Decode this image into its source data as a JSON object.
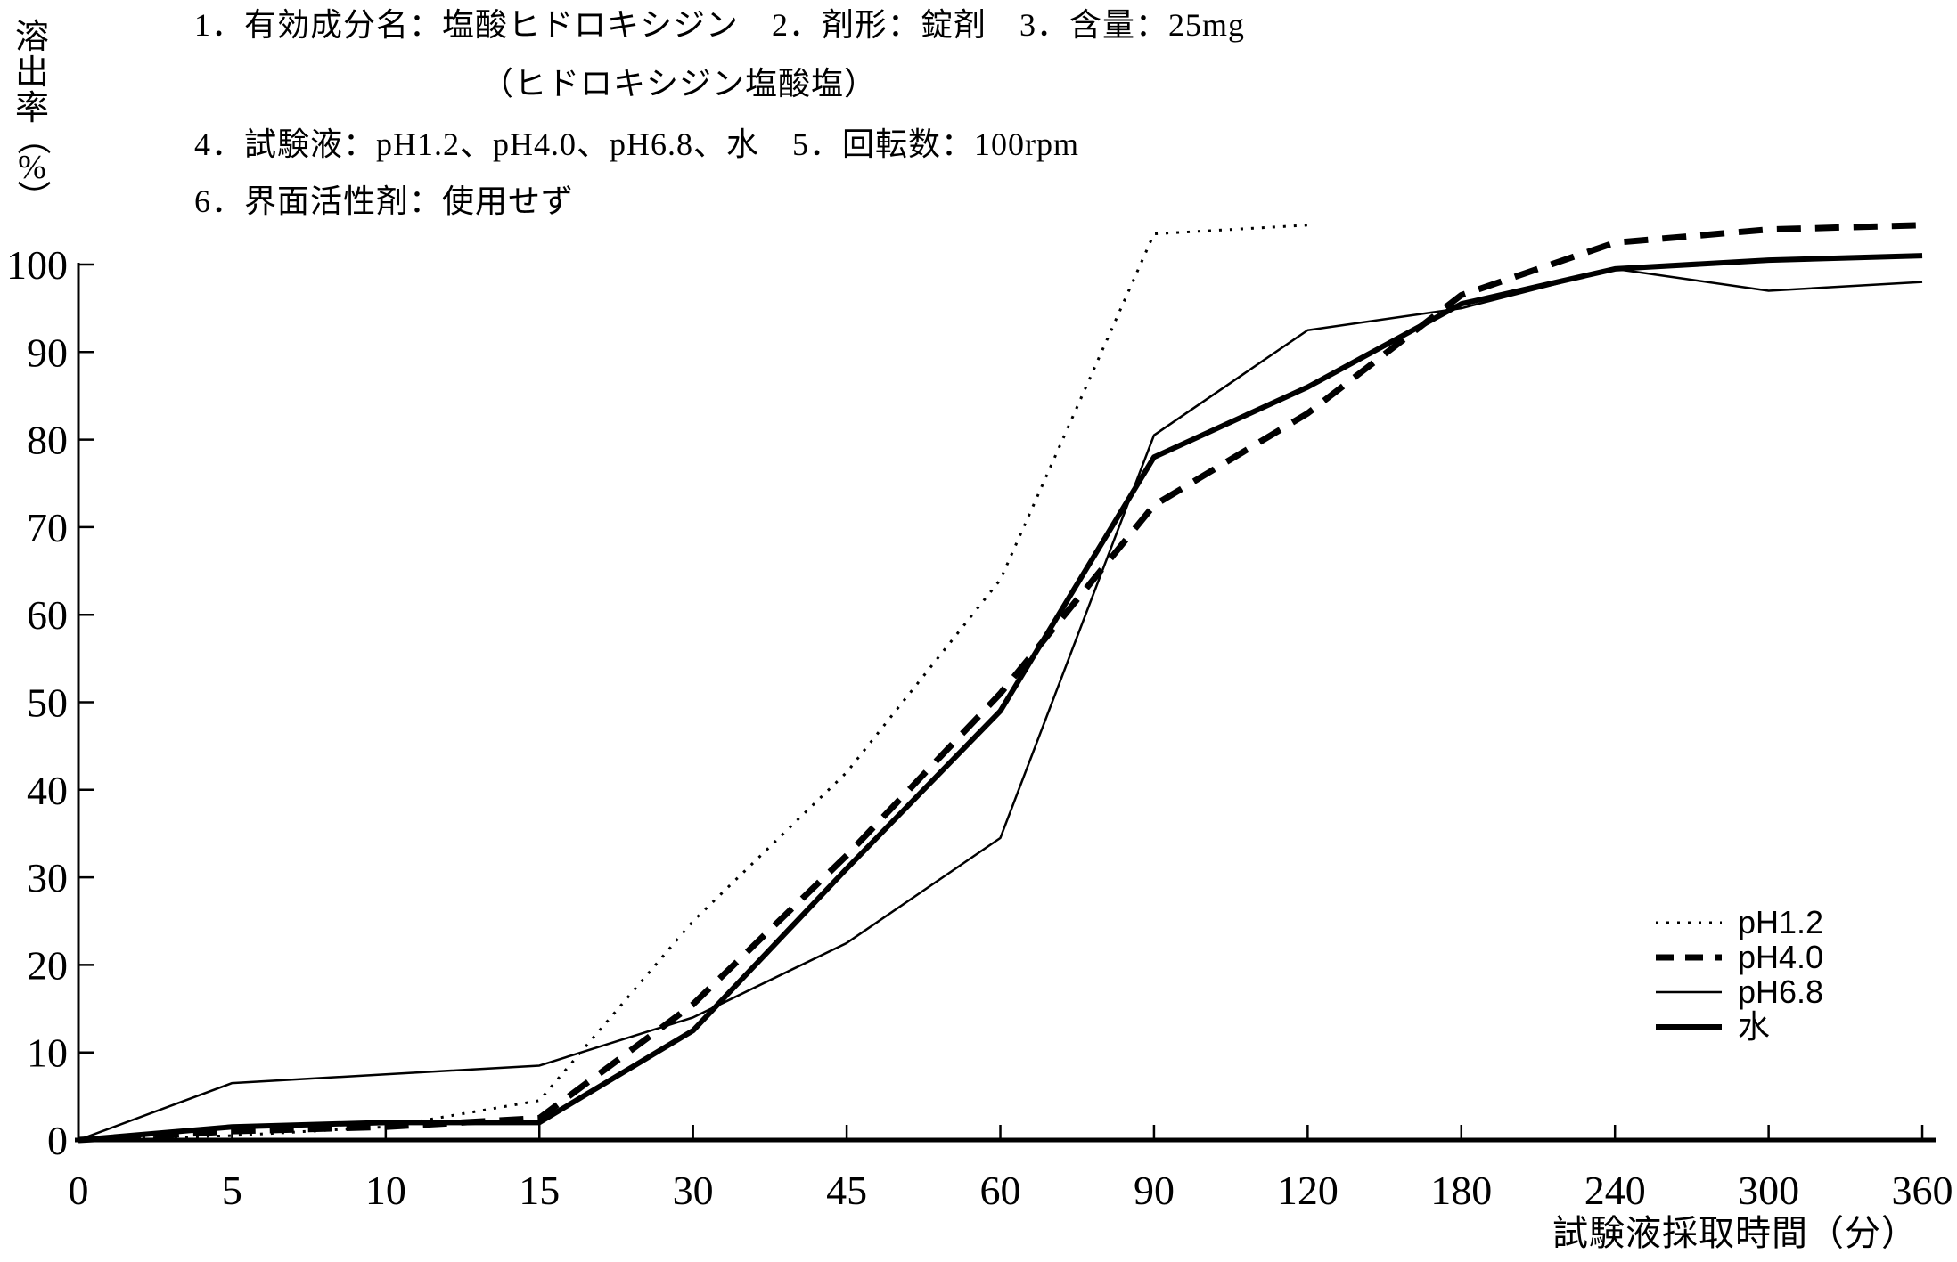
{
  "page": {
    "background": "#ffffff",
    "ink": "#000000"
  },
  "chart_data": {
    "type": "line",
    "header_lines": [
      "1．有効成分名：塩酸ヒドロキシジン　2．剤形：錠剤　3．含量：25mg",
      "（ヒドロキシジン塩酸塩）",
      "4．試験液：pH1.2、pH4.0、pH6.8、水　5．回転数：100rpm",
      "6．界面活性剤：使用せず"
    ],
    "ylabel": "溶出率（%）",
    "ylabel_chars": [
      "溶",
      "出",
      "率",
      "（",
      "%",
      "）"
    ],
    "xlabel": "試験液採取時間（分）",
    "x_scale": "categorical-equal-spacing",
    "x_categories": [
      0,
      5,
      10,
      15,
      30,
      45,
      60,
      90,
      120,
      180,
      240,
      300,
      360
    ],
    "y_ticks": [
      0,
      10,
      20,
      30,
      40,
      50,
      60,
      70,
      80,
      90,
      100
    ],
    "ylim": [
      0,
      100
    ],
    "grid": false,
    "line_color": "#000000",
    "legend_position": "inside-right-lower",
    "series": [
      {
        "name": "pH1.2",
        "line_style": "dotted-thin",
        "stroke_width": 3,
        "dash": "3 9",
        "values": [
          0,
          0.5,
          1.5,
          4.5,
          25,
          42,
          64,
          103.5,
          104.5
        ]
      },
      {
        "name": "pH4.0",
        "line_style": "dashed-thick",
        "stroke_width": 7,
        "dash": "27 16",
        "values": [
          0,
          1,
          1.5,
          2.5,
          15.5,
          32.5,
          51,
          72.5,
          83,
          96.5,
          102.5,
          104,
          104.5
        ]
      },
      {
        "name": "pH6.8",
        "line_style": "solid-thin",
        "stroke_width": 2.5,
        "dash": null,
        "values": [
          0,
          6.5,
          7.5,
          8.5,
          14,
          22.5,
          34.5,
          80.5,
          92.5,
          95,
          99.5,
          97,
          98
        ]
      },
      {
        "name": "水",
        "line_style": "solid-thick",
        "stroke_width": 6,
        "dash": null,
        "values": [
          0,
          1.5,
          2,
          2,
          12.5,
          31,
          49,
          78,
          86,
          95.5,
          99.5,
          100.5,
          101
        ]
      }
    ]
  }
}
